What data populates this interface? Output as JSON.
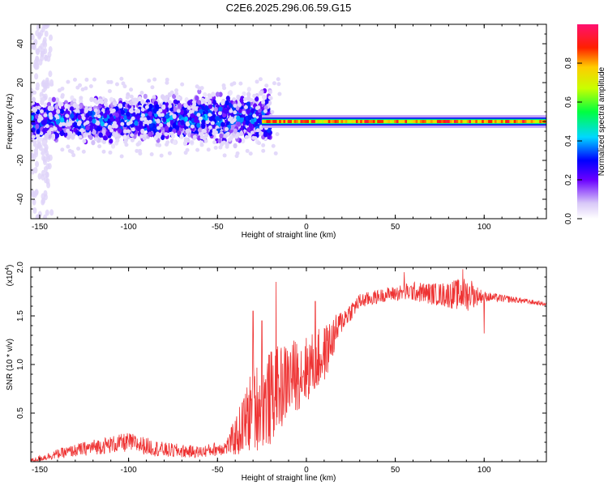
{
  "title": "C2E6.2025.296.06.59.G15",
  "spectrogram": {
    "type": "heatmap",
    "xlabel": "Height of straight line (km)",
    "ylabel": "Frequency (Hz)",
    "xlim": [
      -155,
      135
    ],
    "ylim": [
      -50,
      50
    ],
    "xticks": [
      "-150",
      "-100",
      "-50",
      "0",
      "50",
      "100"
    ],
    "xtick_values": [
      -150,
      -100,
      -50,
      0,
      50,
      100
    ],
    "yticks": [
      "-40",
      "-20",
      "0",
      "20",
      "40"
    ],
    "ytick_values": [
      -40,
      -20,
      0,
      20,
      40
    ],
    "colorbar_label": "Normalized spectral amplitude",
    "colorbar_ticks": [
      "0.0",
      "0.2",
      "0.4",
      "0.6",
      "0.8"
    ],
    "colorbar_values": [
      0.0,
      0.2,
      0.4,
      0.6,
      0.8
    ],
    "features": [
      {
        "name": "scattered-noise-band",
        "x": [
          -155,
          -25
        ],
        "center_hz": 0,
        "spread_hz": 10,
        "amplitude": 0.3
      },
      {
        "name": "tracked-tone",
        "x": [
          -25,
          135
        ],
        "center_hz": 0,
        "spread_hz": 2,
        "amplitude": 0.8
      }
    ]
  },
  "snr_plot": {
    "type": "line",
    "xlabel": "Height of straight line (km)",
    "ylabel": "SNR (10 * v/v)",
    "scale_label": "(x10",
    "scale_exp": "4",
    "xlim": [
      -155,
      135
    ],
    "ylim": [
      0,
      2.0
    ],
    "xticks": [
      "-150",
      "-100",
      "-50",
      "0",
      "50",
      "100"
    ],
    "xtick_values": [
      -150,
      -100,
      -50,
      0,
      50,
      100
    ],
    "yticks": [
      "0.5",
      "1.0",
      "1.5",
      "2.0"
    ],
    "ytick_values": [
      0.5,
      1.0,
      1.5,
      2.0
    ],
    "line_color": "#ee3333",
    "profile": [
      {
        "x": -155,
        "y": 0.01,
        "noise": 0.02
      },
      {
        "x": -140,
        "y": 0.08,
        "noise": 0.05
      },
      {
        "x": -120,
        "y": 0.15,
        "noise": 0.08
      },
      {
        "x": -100,
        "y": 0.2,
        "noise": 0.1
      },
      {
        "x": -80,
        "y": 0.12,
        "noise": 0.08
      },
      {
        "x": -60,
        "y": 0.1,
        "noise": 0.06
      },
      {
        "x": -45,
        "y": 0.15,
        "noise": 0.08
      },
      {
        "x": -38,
        "y": 0.3,
        "noise": 0.25
      },
      {
        "x": -30,
        "y": 0.55,
        "noise": 0.45
      },
      {
        "x": -20,
        "y": 0.65,
        "noise": 0.5
      },
      {
        "x": -10,
        "y": 0.85,
        "noise": 0.4
      },
      {
        "x": 0,
        "y": 0.95,
        "noise": 0.35
      },
      {
        "x": 10,
        "y": 1.1,
        "noise": 0.3
      },
      {
        "x": 20,
        "y": 1.45,
        "noise": 0.12
      },
      {
        "x": 30,
        "y": 1.65,
        "noise": 0.08
      },
      {
        "x": 45,
        "y": 1.72,
        "noise": 0.07
      },
      {
        "x": 60,
        "y": 1.75,
        "noise": 0.1
      },
      {
        "x": 75,
        "y": 1.72,
        "noise": 0.12
      },
      {
        "x": 90,
        "y": 1.72,
        "noise": 0.18
      },
      {
        "x": 100,
        "y": 1.7,
        "noise": 0.05
      },
      {
        "x": 120,
        "y": 1.66,
        "noise": 0.03
      },
      {
        "x": 135,
        "y": 1.62,
        "noise": 0.02
      }
    ],
    "spikes": [
      {
        "x": -30,
        "y": 1.55
      },
      {
        "x": -25,
        "y": 1.45
      },
      {
        "x": -17,
        "y": 1.85
      },
      {
        "x": 5,
        "y": 1.65
      },
      {
        "x": 55,
        "y": 1.95
      },
      {
        "x": 88,
        "y": 1.98
      },
      {
        "x": 93,
        "y": 1.86
      },
      {
        "x": 100,
        "y": 1.32
      }
    ]
  },
  "chart_data": [
    {
      "type": "heatmap",
      "title": "C2E6.2025.296.06.59.G15",
      "xlabel": "Height of straight line (km)",
      "ylabel": "Frequency (Hz)",
      "xlim": [
        -155,
        135
      ],
      "ylim": [
        -50,
        50
      ],
      "colorbar": {
        "label": "Normalized spectral amplitude",
        "range": [
          0,
          1
        ]
      }
    },
    {
      "type": "line",
      "xlabel": "Height of straight line (km)",
      "ylabel": "SNR (10 * v/v) (x10^4)",
      "xlim": [
        -155,
        135
      ],
      "ylim": [
        0,
        2.0
      ],
      "series": [
        {
          "name": "SNR",
          "color": "#ee3333"
        }
      ]
    }
  ]
}
